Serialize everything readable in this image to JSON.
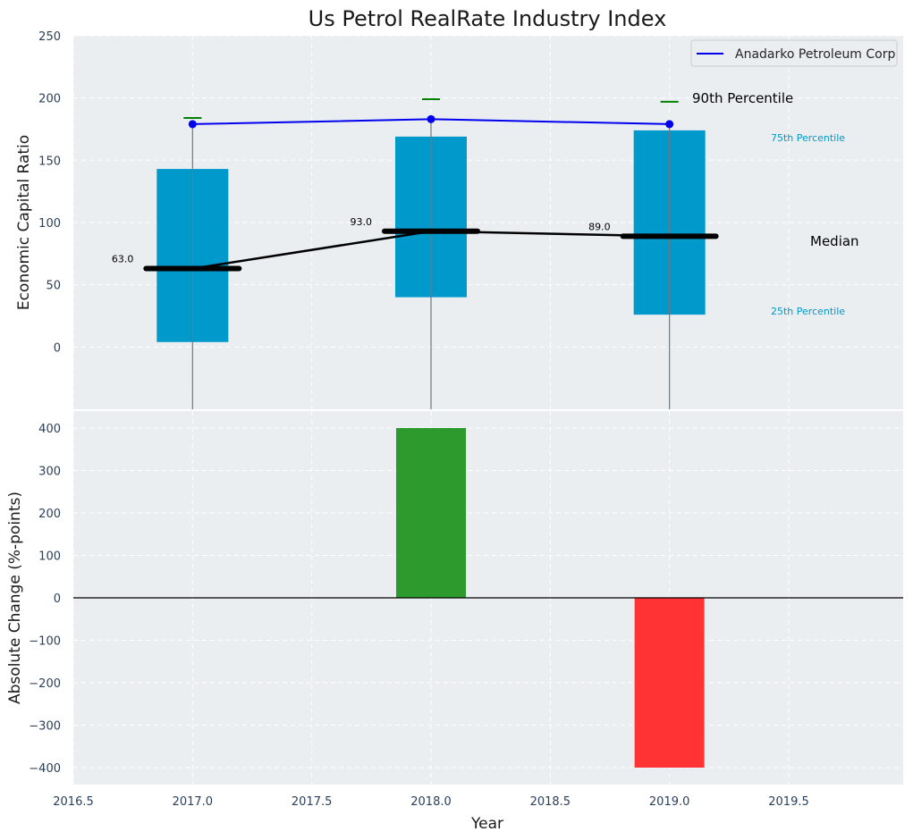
{
  "title": "Us Petrol RealRate Industry Index",
  "chart_data": [
    {
      "type": "box-percentile",
      "ylabel": "Economic Capital Ratio",
      "ylim": [
        -50,
        250
      ],
      "yticks": [
        0,
        50,
        100,
        150,
        200,
        250
      ],
      "years": [
        2017,
        2018,
        2019
      ],
      "p25": [
        4,
        40,
        26
      ],
      "p75": [
        143,
        169,
        174
      ],
      "p90": [
        184,
        199,
        197
      ],
      "median": [
        63,
        93,
        89
      ],
      "median_labels": [
        "63.0",
        "93.0",
        "89.0"
      ],
      "whisker_top": [
        180,
        184,
        180
      ],
      "company": {
        "name": "Anadarko Petroleum Corp",
        "values": [
          179,
          183,
          179
        ]
      },
      "annotations": {
        "p90": "90th Percentile",
        "p75": "75th Percentile",
        "median": "Median",
        "p25": "25th Percentile"
      },
      "legend_position": "top-right",
      "grid": true
    },
    {
      "type": "bar",
      "xlabel": "Year",
      "ylabel": "Absolute Change (%-points)",
      "ylim": [
        -440,
        440
      ],
      "yticks": [
        -400,
        -300,
        -200,
        -100,
        0,
        100,
        200,
        300,
        400
      ],
      "years": [
        2017,
        2018,
        2019
      ],
      "values": [
        0,
        400,
        -400
      ],
      "grid": true
    }
  ],
  "x_axis": {
    "xlim": [
      2016.5,
      2019.98
    ],
    "ticks": [
      2016.5,
      2017.0,
      2017.5,
      2018.0,
      2018.5,
      2019.0,
      2019.5
    ],
    "tick_labels": [
      "2016.5",
      "2017.0",
      "2017.5",
      "2018.0",
      "2018.5",
      "2019.0",
      "2019.5"
    ]
  },
  "colors": {
    "panel_bg": "#eaeef0",
    "box": "#0099cc",
    "company_line": "#0000ee",
    "median_line": "#000000",
    "p90_marker": "#008000",
    "positive_bar": "#2d9a2d",
    "negative_bar": "#ff3333",
    "annotation_blue": "#0099cc"
  }
}
